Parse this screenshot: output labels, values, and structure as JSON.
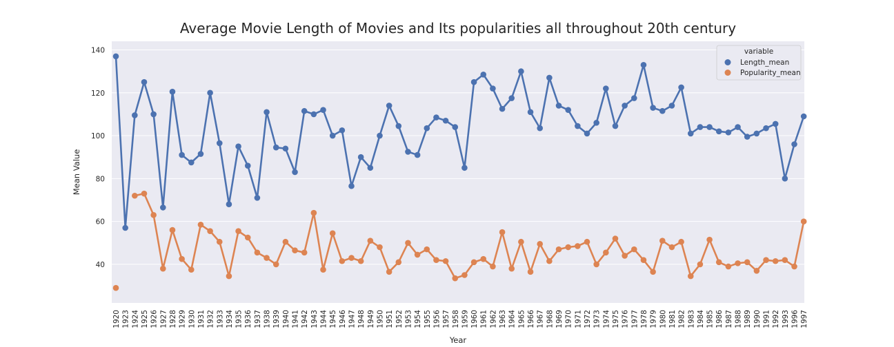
{
  "chart_data": {
    "type": "line",
    "title": "Average Movie Length of Movies and Its popularities all throughout 20th century",
    "xlabel": "Year",
    "ylabel": "Mean Value",
    "ylim": [
      22,
      144
    ],
    "yticks": [
      40,
      60,
      80,
      100,
      120,
      140
    ],
    "grid": true,
    "legend": {
      "title": "variable",
      "placement": "top-right"
    },
    "colors": {
      "background": "#EAEAF2",
      "grid": "#FFFFFF",
      "Length_mean": "#4C72B0",
      "Popularity_mean": "#DD8452"
    },
    "categories": [
      "1920",
      "1923",
      "1924",
      "1925",
      "1926",
      "1927",
      "1928",
      "1929",
      "1930",
      "1931",
      "1932",
      "1933",
      "1934",
      "1935",
      "1936",
      "1937",
      "1938",
      "1939",
      "1940",
      "1941",
      "1942",
      "1943",
      "1944",
      "1945",
      "1946",
      "1947",
      "1948",
      "1949",
      "1950",
      "1951",
      "1952",
      "1953",
      "1954",
      "1955",
      "1956",
      "1957",
      "1958",
      "1959",
      "1960",
      "1961",
      "1962",
      "1963",
      "1964",
      "1965",
      "1966",
      "1967",
      "1968",
      "1969",
      "1970",
      "1971",
      "1972",
      "1973",
      "1974",
      "1975",
      "1976",
      "1977",
      "1978",
      "1979",
      "1980",
      "1981",
      "1982",
      "1983",
      "1984",
      "1985",
      "1986",
      "1987",
      "1988",
      "1989",
      "1990",
      "1991",
      "1992",
      "1993",
      "1996",
      "1997"
    ],
    "series": [
      {
        "name": "Length_mean",
        "values": [
          137,
          57,
          109.5,
          125,
          110,
          66.5,
          120.5,
          91,
          87.5,
          91.5,
          120,
          96.5,
          68,
          95,
          86,
          71,
          111,
          94.5,
          94,
          83,
          111.5,
          110,
          112,
          100,
          102.5,
          76.5,
          90,
          85,
          100,
          114,
          104.5,
          92.5,
          91,
          103.5,
          108.5,
          107,
          104,
          85,
          125,
          128.5,
          122,
          112.5,
          117.5,
          130,
          111,
          103.5,
          127,
          114,
          112,
          104.5,
          101,
          106,
          122,
          104.5,
          114,
          117.5,
          133,
          113,
          111.5,
          114,
          122.5,
          101,
          104,
          104,
          102,
          101.5,
          104,
          99.5,
          101,
          103.5,
          105.5,
          80,
          96,
          109
        ]
      },
      {
        "name": "Popularity_mean",
        "values": [
          29,
          null,
          72,
          73,
          63,
          38,
          56,
          42.5,
          37.5,
          58.5,
          55.5,
          50.5,
          34.5,
          55.5,
          52.5,
          45.5,
          43,
          40,
          50.5,
          46.5,
          45.5,
          64,
          37.5,
          54.5,
          41.5,
          43,
          41.5,
          51,
          48,
          36.5,
          41,
          50,
          44.5,
          47,
          42,
          41.5,
          33.5,
          35,
          41,
          42.5,
          39,
          55,
          38,
          50.5,
          36.5,
          49.5,
          41.5,
          47,
          48,
          48.5,
          50.5,
          40,
          45.5,
          52,
          44,
          47,
          42,
          36.5,
          51,
          48,
          50.5,
          34.5,
          40,
          51.5,
          41,
          39,
          40.5,
          41,
          37,
          42,
          41.5,
          42,
          39,
          60
        ]
      }
    ]
  }
}
